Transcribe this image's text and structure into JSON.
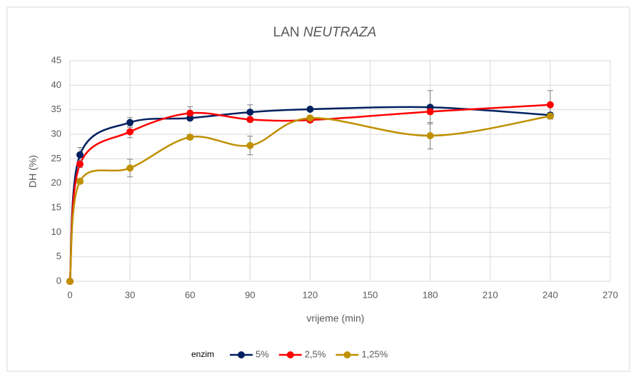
{
  "chart_data": {
    "type": "line",
    "title": "LAN",
    "title_italic": "NEUTRAZA",
    "xlabel": "vrijeme (min)",
    "ylabel": "DH (%)",
    "legend_title": "enzim",
    "x": [
      0,
      5,
      30,
      60,
      90,
      120,
      180,
      240
    ],
    "series": [
      {
        "name": "5%",
        "color": "#002060",
        "values": [
          0,
          25.8,
          32.4,
          33.3,
          34.5,
          35.1,
          35.5,
          33.9
        ],
        "errors": [
          0,
          1.5,
          1,
          0.5,
          1.5,
          0.3,
          3.4,
          0.5
        ]
      },
      {
        "name": "2,5%",
        "color": "#ff0000",
        "values": [
          0,
          23.9,
          30.5,
          34.3,
          33.0,
          32.9,
          34.6,
          36.0
        ],
        "errors": [
          0,
          0.7,
          1.2,
          1.3,
          0.5,
          0.5,
          0.5,
          2.9
        ]
      },
      {
        "name": "1,25%",
        "color": "#bf9000",
        "values": [
          0,
          20.4,
          23.1,
          29.4,
          27.7,
          33.3,
          29.7,
          33.7
        ],
        "errors": [
          0,
          0.5,
          1.8,
          0.5,
          1.9,
          0.5,
          2.7,
          0.5
        ]
      }
    ],
    "xlim": [
      0,
      270
    ],
    "xticks": [
      0,
      30,
      60,
      90,
      120,
      150,
      180,
      210,
      240,
      270
    ],
    "ylim": [
      0,
      45
    ],
    "yticks": [
      0,
      5,
      10,
      15,
      20,
      25,
      30,
      35,
      40,
      45
    ],
    "grid": true,
    "legend": "bottom"
  }
}
